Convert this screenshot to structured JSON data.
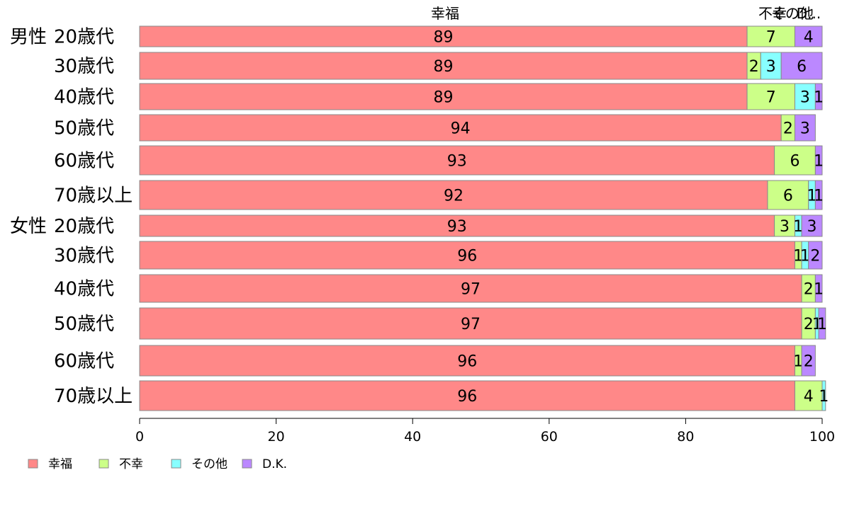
{
  "chart_data": {
    "type": "bar",
    "orientation": "horizontal-stacked",
    "categories": [
      {
        "group": "男性",
        "label": "20歳代"
      },
      {
        "group": "",
        "label": "30歳代"
      },
      {
        "group": "",
        "label": "40歳代"
      },
      {
        "group": "",
        "label": "50歳代"
      },
      {
        "group": "",
        "label": "60歳代"
      },
      {
        "group": "",
        "label": "70歳以上"
      },
      {
        "group": "女性",
        "label": "20歳代"
      },
      {
        "group": "",
        "label": "30歳代"
      },
      {
        "group": "",
        "label": "40歳代"
      },
      {
        "group": "",
        "label": "50歳代"
      },
      {
        "group": "",
        "label": "60歳代"
      },
      {
        "group": "",
        "label": "70歳以上"
      }
    ],
    "series": [
      {
        "name": "幸福",
        "color": "#ff8888",
        "values": [
          89,
          89,
          89,
          94,
          93,
          92,
          93,
          96,
          97,
          97,
          96,
          96
        ]
      },
      {
        "name": "不幸",
        "color": "#ccff88",
        "values": [
          7,
          2,
          7,
          2,
          6,
          6,
          3,
          1,
          2,
          2,
          1,
          4
        ]
      },
      {
        "name": "その他",
        "color": "#88ffff",
        "values": [
          0,
          3,
          3,
          0,
          0,
          1,
          1,
          1,
          0,
          0.5,
          0,
          0.5
        ]
      },
      {
        "name": "D.K.",
        "color": "#bb88ff",
        "values": [
          4,
          6,
          1,
          3,
          1,
          1,
          3,
          2,
          1,
          1,
          2,
          0
        ]
      }
    ],
    "segment_labels": [
      [
        "89",
        "7",
        "",
        "4"
      ],
      [
        "89",
        "2",
        "3",
        "6"
      ],
      [
        "89",
        "7",
        "3",
        "1"
      ],
      [
        "94",
        "2",
        "",
        "3"
      ],
      [
        "93",
        "6",
        "",
        "1"
      ],
      [
        "92",
        "6",
        "1",
        "1"
      ],
      [
        "93",
        "3",
        "1",
        "3"
      ],
      [
        "96",
        "1",
        "1",
        "2"
      ],
      [
        "97",
        "2",
        "",
        "1"
      ],
      [
        "97",
        "2",
        "1",
        "1"
      ],
      [
        "96",
        "1",
        "",
        "2"
      ],
      [
        "96",
        "4",
        "1",
        ""
      ]
    ],
    "header_labels": [
      "幸福",
      "不幸",
      "その他",
      "D..."
    ],
    "xlim": [
      0,
      100
    ],
    "xticks": [
      "0",
      "20",
      "40",
      "60",
      "80",
      "100"
    ],
    "grid": false,
    "legend": [
      "幸福",
      "不幸",
      "その他",
      "D.K."
    ],
    "legend_position": "bottom-left"
  }
}
